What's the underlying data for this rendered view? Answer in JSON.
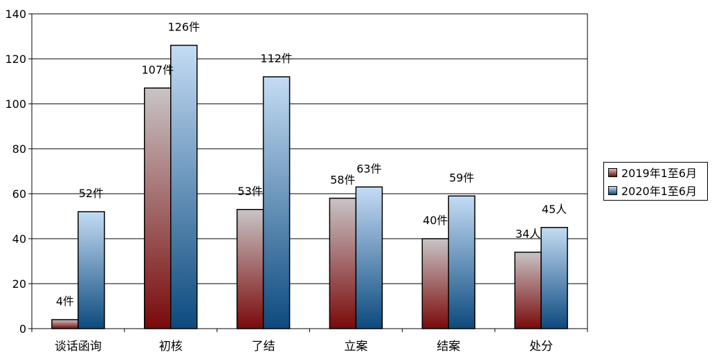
{
  "colors": {
    "series_2019_top": "#c8c4c6",
    "series_2019_bottom": "#7a0a0a",
    "series_2020_top": "#c4dcf4",
    "series_2020_bottom": "#0c4a7e"
  },
  "chart_data": {
    "type": "bar",
    "categories": [
      "谈话函询",
      "初核",
      "了结",
      "立案",
      "结案",
      "处分"
    ],
    "series": [
      {
        "name": "2019年1至6月",
        "values": [
          4,
          107,
          53,
          58,
          40,
          34
        ],
        "labels": [
          "4件",
          "107件",
          "53件",
          "58件",
          "40件",
          "34人"
        ]
      },
      {
        "name": "2020年1至6月",
        "values": [
          52,
          126,
          112,
          63,
          59,
          45
        ],
        "labels": [
          "52件",
          "126件",
          "112件",
          "63件",
          "59件",
          "45人"
        ]
      }
    ],
    "ylim": [
      0,
      140
    ],
    "yticks": [
      0,
      20,
      40,
      60,
      80,
      100,
      120,
      140
    ],
    "grid": true,
    "legend": "right"
  }
}
